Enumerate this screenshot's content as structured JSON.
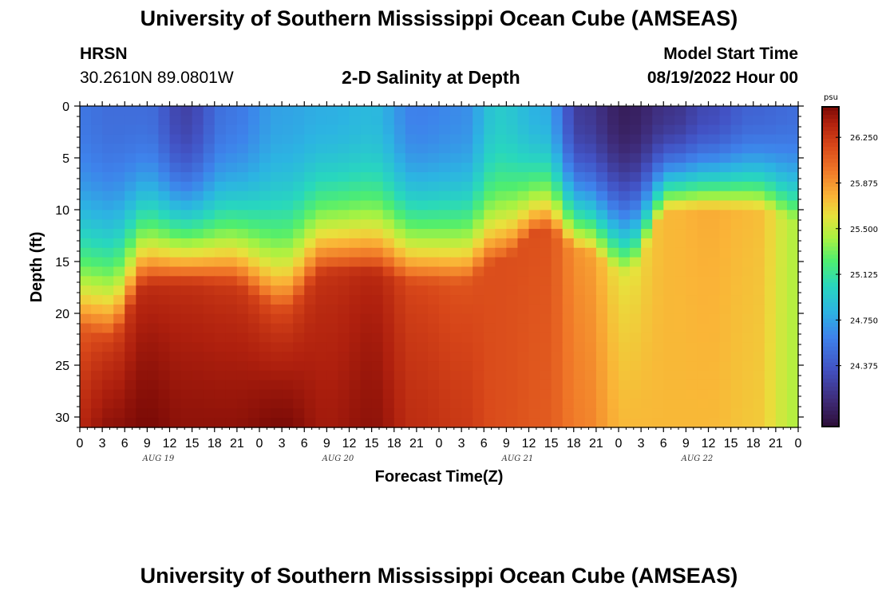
{
  "header": {
    "title": "University of Southern Mississippi Ocean Cube (AMSEAS)",
    "station_code": "HRSN",
    "station_coords": "30.2610N  89.0801W",
    "plot_title": "2-D Salinity at Depth",
    "model_start_label": "Model Start Time",
    "model_start_value": "08/19/2022 Hour 00"
  },
  "footer": {
    "title": "University of Southern Mississippi Ocean Cube (AMSEAS)"
  },
  "chart_data": {
    "type": "heatmap",
    "title": "2-D Salinity at Depth",
    "xlabel": "Forecast Time(Z)",
    "ylabel": "Depth (ft)",
    "x_unit": "hours since 08/19/2022 00Z",
    "xlim": [
      0,
      96
    ],
    "ylim": [
      0,
      31
    ],
    "x_tick_labels": [
      "0",
      "3",
      "6",
      "9",
      "12",
      "15",
      "18",
      "21",
      "0",
      "3",
      "6",
      "9",
      "12",
      "15",
      "18",
      "21",
      "0",
      "3",
      "6",
      "9",
      "12",
      "15",
      "18",
      "21",
      "0",
      "3",
      "6",
      "9",
      "12",
      "15",
      "18",
      "21",
      "0"
    ],
    "y_ticks": [
      0,
      5,
      10,
      15,
      20,
      25,
      30
    ],
    "day_labels": [
      {
        "label": "AUG 19",
        "hour": 10.5
      },
      {
        "label": "AUG 20",
        "hour": 34.5
      },
      {
        "label": "AUG 21",
        "hour": 58.5
      },
      {
        "label": "AUG 22",
        "hour": 82.5
      }
    ],
    "colorbar": {
      "unit": "psu",
      "min": 23.875,
      "max": 26.5,
      "ticks": [
        "26.250",
        "25.875",
        "25.500",
        "25.125",
        "24.750",
        "24.375"
      ]
    },
    "profiles": {
      "hours": [
        0,
        4,
        9,
        14,
        20,
        27,
        33,
        39,
        45,
        51,
        56,
        62,
        67,
        73,
        79,
        84,
        90,
        96
      ],
      "interface_depth_ft": [
        21,
        22,
        17,
        17,
        17,
        19,
        16,
        16,
        17,
        17,
        15,
        12,
        14,
        16,
        10,
        10,
        10,
        11
      ],
      "surface_psu": [
        24.55,
        24.5,
        24.5,
        24.25,
        24.55,
        24.75,
        24.8,
        24.85,
        24.6,
        24.65,
        24.95,
        24.8,
        24.2,
        24.0,
        24.15,
        24.3,
        24.45,
        24.5
      ],
      "bottom_psu": [
        26.35,
        26.45,
        26.5,
        26.45,
        26.45,
        26.5,
        26.4,
        26.45,
        26.3,
        26.25,
        26.15,
        26.1,
        25.95,
        25.75,
        25.75,
        25.75,
        25.7,
        25.45
      ],
      "plateau_psu": [
        26.0,
        26.1,
        26.25,
        26.25,
        26.2,
        26.05,
        26.25,
        26.3,
        26.15,
        26.1,
        26.15,
        26.15,
        25.85,
        25.55,
        25.75,
        25.8,
        25.75,
        25.45
      ]
    }
  }
}
